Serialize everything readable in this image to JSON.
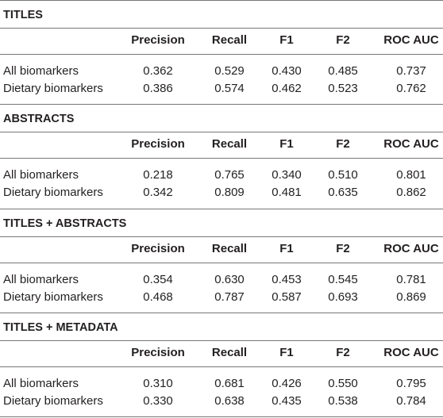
{
  "sections": [
    {
      "title": "TITLES",
      "header": [
        "Precision",
        "Recall",
        "F1",
        "F2",
        "ROC AUC"
      ],
      "rows": [
        {
          "label": "All biomarkers",
          "values": [
            "0.362",
            "0.529",
            "0.430",
            "0.485",
            "0.737"
          ]
        },
        {
          "label": "Dietary biomarkers",
          "values": [
            "0.386",
            "0.574",
            "0.462",
            "0.523",
            "0.762"
          ]
        }
      ]
    },
    {
      "title": "ABSTRACTS",
      "header": [
        "Precision",
        "Recall",
        "F1",
        "F2",
        "ROC AUC"
      ],
      "rows": [
        {
          "label": "All biomarkers",
          "values": [
            "0.218",
            "0.765",
            "0.340",
            "0.510",
            "0.801"
          ]
        },
        {
          "label": "Dietary biomarkers",
          "values": [
            "0.342",
            "0.809",
            "0.481",
            "0.635",
            "0.862"
          ]
        }
      ]
    },
    {
      "title": "TITLES + ABSTRACTS",
      "header": [
        "Precision",
        "Recall",
        "F1",
        "F2",
        "ROC AUC"
      ],
      "rows": [
        {
          "label": "All biomarkers",
          "values": [
            "0.354",
            "0.630",
            "0.453",
            "0.545",
            "0.781"
          ]
        },
        {
          "label": "Dietary biomarkers",
          "values": [
            "0.468",
            "0.787",
            "0.587",
            "0.693",
            "0.869"
          ]
        }
      ]
    },
    {
      "title": "TITLES + METADATA",
      "header": [
        "Precision",
        "Recall",
        "F1",
        "F2",
        "ROC AUC"
      ],
      "rows": [
        {
          "label": "All biomarkers",
          "values": [
            "0.310",
            "0.681",
            "0.426",
            "0.550",
            "0.795"
          ]
        },
        {
          "label": "Dietary biomarkers",
          "values": [
            "0.330",
            "0.638",
            "0.435",
            "0.538",
            "0.784"
          ]
        }
      ]
    }
  ]
}
